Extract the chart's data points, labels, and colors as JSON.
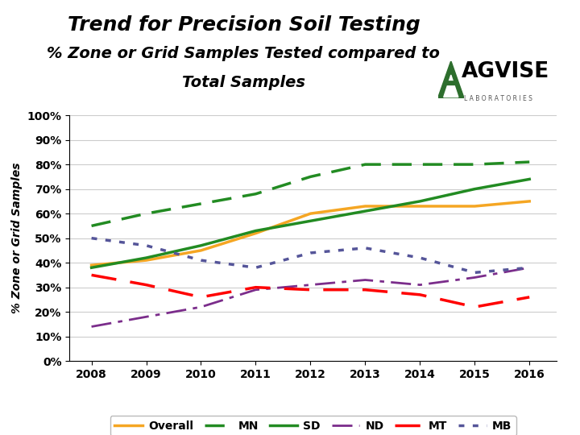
{
  "title_line1": "Trend for Precision Soil Testing",
  "title_line2": "% Zone or Grid Samples Tested compared to",
  "title_line3": "Total Samples",
  "ylabel": "% Zone or Grid Samples",
  "years": [
    2008,
    2009,
    2010,
    2011,
    2012,
    2013,
    2014,
    2015,
    2016
  ],
  "series": {
    "Overall": {
      "values": [
        39,
        41,
        45,
        52,
        60,
        63,
        63,
        63,
        65
      ],
      "color": "#F5A623",
      "linestyle": "solid",
      "linewidth": 2.5
    },
    "MN": {
      "values": [
        55,
        60,
        64,
        68,
        75,
        80,
        80,
        80,
        81
      ],
      "color": "#228B22",
      "linestyle": "dashed",
      "linewidth": 2.5
    },
    "SD": {
      "values": [
        38,
        42,
        47,
        53,
        57,
        61,
        65,
        70,
        74
      ],
      "color": "#228B22",
      "linestyle": "solid",
      "linewidth": 2.5
    },
    "ND": {
      "values": [
        14,
        18,
        22,
        29,
        31,
        33,
        31,
        34,
        38
      ],
      "color": "#7B2D8B",
      "linestyle": "dashdot",
      "linewidth": 2.0
    },
    "MT": {
      "values": [
        35,
        31,
        26,
        30,
        29,
        29,
        27,
        22,
        26
      ],
      "color": "#FF0000",
      "linestyle": "dashed",
      "linewidth": 2.5
    },
    "MB": {
      "values": [
        50,
        47,
        41,
        38,
        44,
        46,
        42,
        36,
        38
      ],
      "color": "#555599",
      "linestyle": "dotted",
      "linewidth": 2.5
    }
  },
  "ylim": [
    0,
    100
  ],
  "ytick_labels": [
    "0%",
    "10%",
    "20%",
    "30%",
    "40%",
    "50%",
    "60%",
    "70%",
    "80%",
    "90%",
    "100%"
  ],
  "ytick_values": [
    0,
    10,
    20,
    30,
    40,
    50,
    60,
    70,
    80,
    90,
    100
  ],
  "background_color": "#ffffff",
  "plot_bg_color": "#ffffff",
  "grid_color": "#cccccc",
  "legend_order": [
    "Overall",
    "MN",
    "SD",
    "ND",
    "MT",
    "MB"
  ]
}
